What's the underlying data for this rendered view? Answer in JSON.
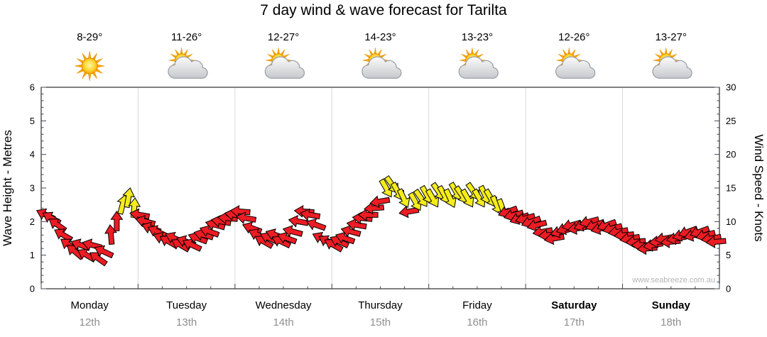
{
  "title": "7 day wind & wave forecast for Tarilta",
  "watermark": "www.seabreeze.com.au",
  "chart_data": {
    "type": "wind_vector_timeline",
    "title": "7 day wind & wave forecast for Tarilta",
    "left_axis": {
      "label": "Wave Height - Metres",
      "min": 0,
      "max": 6,
      "step": 1,
      "minor_step": 0.2
    },
    "right_axis": {
      "label": "Wind Speed - Knots",
      "min": 0,
      "max": 30,
      "step": 5,
      "minor_step": 1
    },
    "x_axis": {
      "unit": "days",
      "count": 7,
      "minor_per_day": 4
    },
    "days": [
      {
        "name": "Monday",
        "date": "12th",
        "temp": "8-29°",
        "icon": "sunny",
        "weekend": false
      },
      {
        "name": "Tuesday",
        "date": "13th",
        "temp": "11-26°",
        "icon": "partly-cloudy",
        "weekend": false
      },
      {
        "name": "Wednesday",
        "date": "14th",
        "temp": "12-27°",
        "icon": "partly-cloudy",
        "weekend": false
      },
      {
        "name": "Thursday",
        "date": "15th",
        "temp": "14-23°",
        "icon": "partly-cloudy",
        "weekend": false
      },
      {
        "name": "Friday",
        "date": "16th",
        "temp": "13-23°",
        "icon": "partly-cloudy",
        "weekend": false
      },
      {
        "name": "Saturday",
        "date": "17th",
        "temp": "12-26°",
        "icon": "partly-cloudy",
        "weekend": true
      },
      {
        "name": "Sunday",
        "date": "18th",
        "temp": "13-27°",
        "icon": "partly-cloudy",
        "weekend": true
      }
    ],
    "arrow_colors": [
      "#ec1c24",
      "#f5ec1c"
    ],
    "speed_unit": "knots",
    "arrows": [
      [
        0.05,
        11,
        205,
        0
      ],
      [
        0.11,
        10.5,
        210,
        0
      ],
      [
        0.17,
        9.5,
        215,
        0
      ],
      [
        0.23,
        8,
        210,
        0
      ],
      [
        0.29,
        6.5,
        215,
        0
      ],
      [
        0.35,
        5.5,
        220,
        0
      ],
      [
        0.41,
        6.5,
        200,
        0
      ],
      [
        0.47,
        5,
        210,
        0
      ],
      [
        0.53,
        6.5,
        195,
        0
      ],
      [
        0.59,
        4.5,
        215,
        0
      ],
      [
        0.65,
        5.5,
        205,
        0
      ],
      [
        0.72,
        8,
        265,
        0
      ],
      [
        0.78,
        10,
        270,
        0
      ],
      [
        0.84,
        12.5,
        285,
        1
      ],
      [
        0.9,
        13.5,
        280,
        1
      ],
      [
        0.96,
        12,
        275,
        1
      ],
      [
        1.02,
        11,
        190,
        0
      ],
      [
        1.08,
        10,
        195,
        0
      ],
      [
        1.14,
        9,
        200,
        0
      ],
      [
        1.2,
        8.5,
        205,
        0
      ],
      [
        1.26,
        7.5,
        200,
        0
      ],
      [
        1.32,
        7,
        210,
        0
      ],
      [
        1.38,
        7.5,
        205,
        0
      ],
      [
        1.44,
        6.5,
        210,
        0
      ],
      [
        1.5,
        7,
        200,
        0
      ],
      [
        1.56,
        6.5,
        205,
        0
      ],
      [
        1.62,
        7.5,
        200,
        0
      ],
      [
        1.68,
        8,
        195,
        0
      ],
      [
        1.74,
        8.5,
        200,
        0
      ],
      [
        1.8,
        9.5,
        195,
        0
      ],
      [
        1.86,
        10,
        190,
        0
      ],
      [
        1.93,
        10.5,
        185,
        0
      ],
      [
        2.0,
        11,
        190,
        0
      ],
      [
        2.06,
        11.5,
        185,
        0
      ],
      [
        2.12,
        10.5,
        190,
        0
      ],
      [
        2.18,
        9,
        200,
        0
      ],
      [
        2.24,
        8,
        205,
        0
      ],
      [
        2.3,
        7,
        210,
        0
      ],
      [
        2.36,
        7.5,
        205,
        0
      ],
      [
        2.42,
        8,
        200,
        0
      ],
      [
        2.48,
        7,
        205,
        0
      ],
      [
        2.54,
        7.5,
        200,
        0
      ],
      [
        2.6,
        8.5,
        195,
        0
      ],
      [
        2.66,
        10,
        190,
        0
      ],
      [
        2.72,
        11.5,
        185,
        0
      ],
      [
        2.78,
        11,
        190,
        0
      ],
      [
        2.84,
        9.5,
        200,
        0
      ],
      [
        2.9,
        7.5,
        205,
        0
      ],
      [
        2.96,
        7,
        210,
        0
      ],
      [
        3.02,
        6.5,
        210,
        0
      ],
      [
        3.08,
        7,
        205,
        0
      ],
      [
        3.14,
        7.5,
        200,
        0
      ],
      [
        3.2,
        8.5,
        195,
        0
      ],
      [
        3.26,
        9.5,
        190,
        0
      ],
      [
        3.32,
        10.5,
        185,
        0
      ],
      [
        3.38,
        11,
        180,
        0
      ],
      [
        3.44,
        12,
        175,
        0
      ],
      [
        3.5,
        13,
        170,
        0
      ],
      [
        3.56,
        15,
        60,
        1
      ],
      [
        3.62,
        15.5,
        55,
        1
      ],
      [
        3.68,
        14.5,
        60,
        1
      ],
      [
        3.74,
        13.5,
        65,
        1
      ],
      [
        3.8,
        11.5,
        170,
        0
      ],
      [
        3.86,
        13,
        60,
        1
      ],
      [
        3.92,
        13.5,
        55,
        1
      ],
      [
        3.98,
        14,
        60,
        1
      ],
      [
        4.04,
        13.5,
        60,
        1
      ],
      [
        4.1,
        14.5,
        55,
        1
      ],
      [
        4.16,
        14,
        60,
        1
      ],
      [
        4.22,
        13.5,
        65,
        1
      ],
      [
        4.28,
        14.5,
        60,
        1
      ],
      [
        4.34,
        14,
        55,
        1
      ],
      [
        4.4,
        13.5,
        60,
        1
      ],
      [
        4.46,
        14.5,
        55,
        1
      ],
      [
        4.52,
        13.5,
        60,
        1
      ],
      [
        4.58,
        14,
        65,
        1
      ],
      [
        4.64,
        13.5,
        60,
        1
      ],
      [
        4.7,
        12.5,
        65,
        1
      ],
      [
        4.76,
        12,
        70,
        1
      ],
      [
        4.82,
        11.5,
        160,
        0
      ],
      [
        4.88,
        11,
        165,
        0
      ],
      [
        4.94,
        10.5,
        160,
        0
      ],
      [
        5.0,
        10.5,
        165,
        0
      ],
      [
        5.06,
        10,
        160,
        0
      ],
      [
        5.12,
        9.5,
        165,
        0
      ],
      [
        5.18,
        8.5,
        170,
        0
      ],
      [
        5.24,
        8,
        175,
        0
      ],
      [
        5.3,
        7.5,
        170,
        0
      ],
      [
        5.36,
        8.5,
        165,
        0
      ],
      [
        5.42,
        9,
        160,
        0
      ],
      [
        5.48,
        9.5,
        165,
        0
      ],
      [
        5.54,
        9,
        170,
        0
      ],
      [
        5.6,
        9.5,
        160,
        0
      ],
      [
        5.66,
        10,
        165,
        0
      ],
      [
        5.72,
        9.5,
        160,
        0
      ],
      [
        5.78,
        9,
        165,
        0
      ],
      [
        5.84,
        9.5,
        160,
        0
      ],
      [
        5.9,
        9,
        165,
        0
      ],
      [
        5.96,
        8.5,
        170,
        0
      ],
      [
        6.02,
        8,
        175,
        0
      ],
      [
        6.08,
        7.5,
        170,
        0
      ],
      [
        6.14,
        7,
        175,
        0
      ],
      [
        6.2,
        6.5,
        180,
        0
      ],
      [
        6.26,
        6,
        175,
        0
      ],
      [
        6.32,
        6.5,
        170,
        0
      ],
      [
        6.38,
        7,
        175,
        0
      ],
      [
        6.44,
        7.5,
        170,
        0
      ],
      [
        6.5,
        7,
        175,
        0
      ],
      [
        6.56,
        7.5,
        170,
        0
      ],
      [
        6.62,
        8,
        165,
        0
      ],
      [
        6.68,
        8.5,
        160,
        0
      ],
      [
        6.74,
        8,
        165,
        0
      ],
      [
        6.8,
        8.5,
        160,
        0
      ],
      [
        6.86,
        8,
        165,
        0
      ],
      [
        6.92,
        7.5,
        170,
        0
      ],
      [
        6.97,
        7,
        175,
        0
      ]
    ]
  }
}
